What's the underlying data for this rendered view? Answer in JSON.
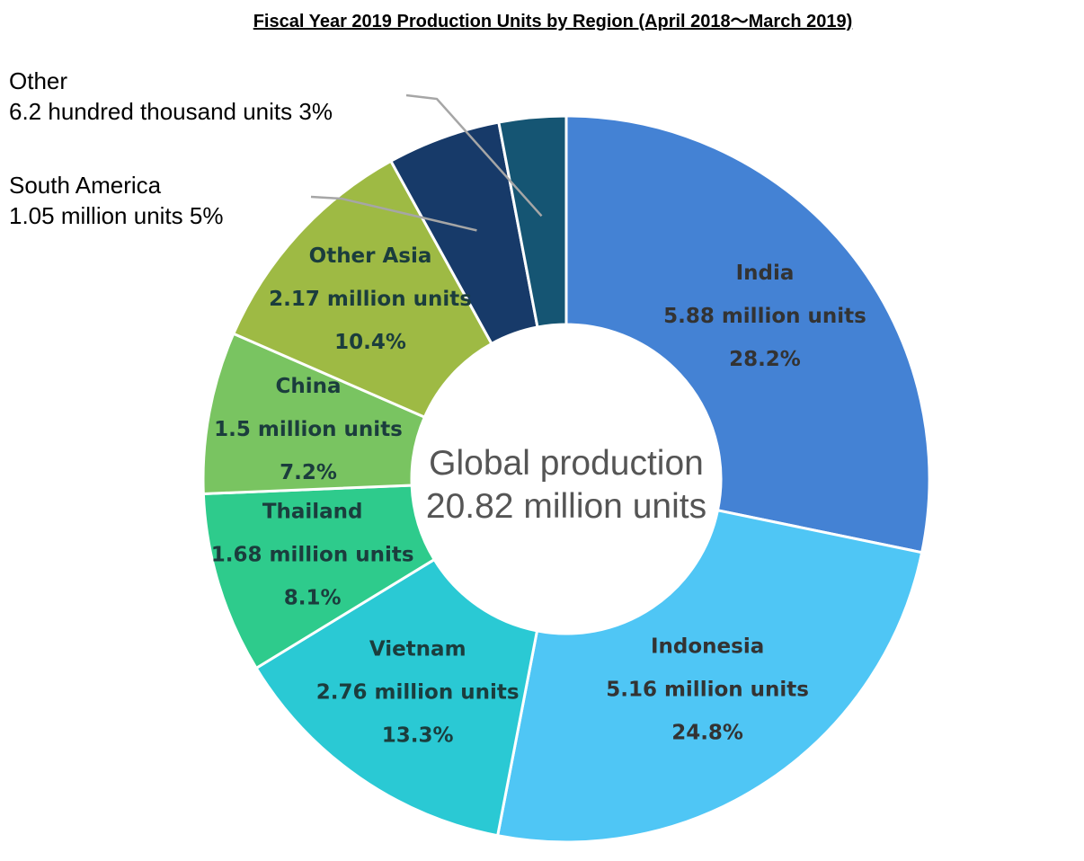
{
  "chart_data": {
    "type": "pie",
    "variant": "donut",
    "title": "Fiscal Year 2019 Production Units by Region (April 2018～March 2019)",
    "center_label": [
      "Global production",
      "20.82 million units"
    ],
    "slices": [
      {
        "name": "India",
        "value_label": "5.88 million units",
        "value": 5.88,
        "percent_label": "28.2%",
        "percent": 28.2,
        "color": "#4482d4"
      },
      {
        "name": "Indonesia",
        "value_label": "5.16 million units",
        "value": 5.16,
        "percent_label": "24.8%",
        "percent": 24.8,
        "color": "#4fc6f5"
      },
      {
        "name": "Vietnam",
        "value_label": "2.76 million units",
        "value": 2.76,
        "percent_label": "13.3%",
        "percent": 13.3,
        "color": "#2ac9d4"
      },
      {
        "name": "Thailand",
        "value_label": "1.68 million units",
        "value": 1.68,
        "percent_label": "8.1%",
        "percent": 8.1,
        "color": "#2ecb8c"
      },
      {
        "name": "China",
        "value_label": "1.5 million units",
        "value": 1.5,
        "percent_label": "7.2%",
        "percent": 7.2,
        "color": "#79c461"
      },
      {
        "name": "Other Asia",
        "value_label": "2.17 million units",
        "value": 2.17,
        "percent_label": "10.4%",
        "percent": 10.4,
        "color": "#9eba44"
      },
      {
        "name": "South America",
        "value_label": "1.05 million units",
        "value": 1.05,
        "percent_label": "5%",
        "percent": 5,
        "color": "#173a69"
      },
      {
        "name": "Other",
        "value_label": "6.2 hundred thousand units",
        "value": 0.62,
        "percent_label": "3%",
        "percent": 3,
        "color": "#155573"
      }
    ],
    "outside_labels": [
      {
        "slice": "Other",
        "line1": "Other",
        "line2": "6.2 hundred thousand units 3%"
      },
      {
        "slice": "South America",
        "line1": "South America",
        "line2": "1.05 million units 5%"
      }
    ],
    "legend": "none"
  }
}
